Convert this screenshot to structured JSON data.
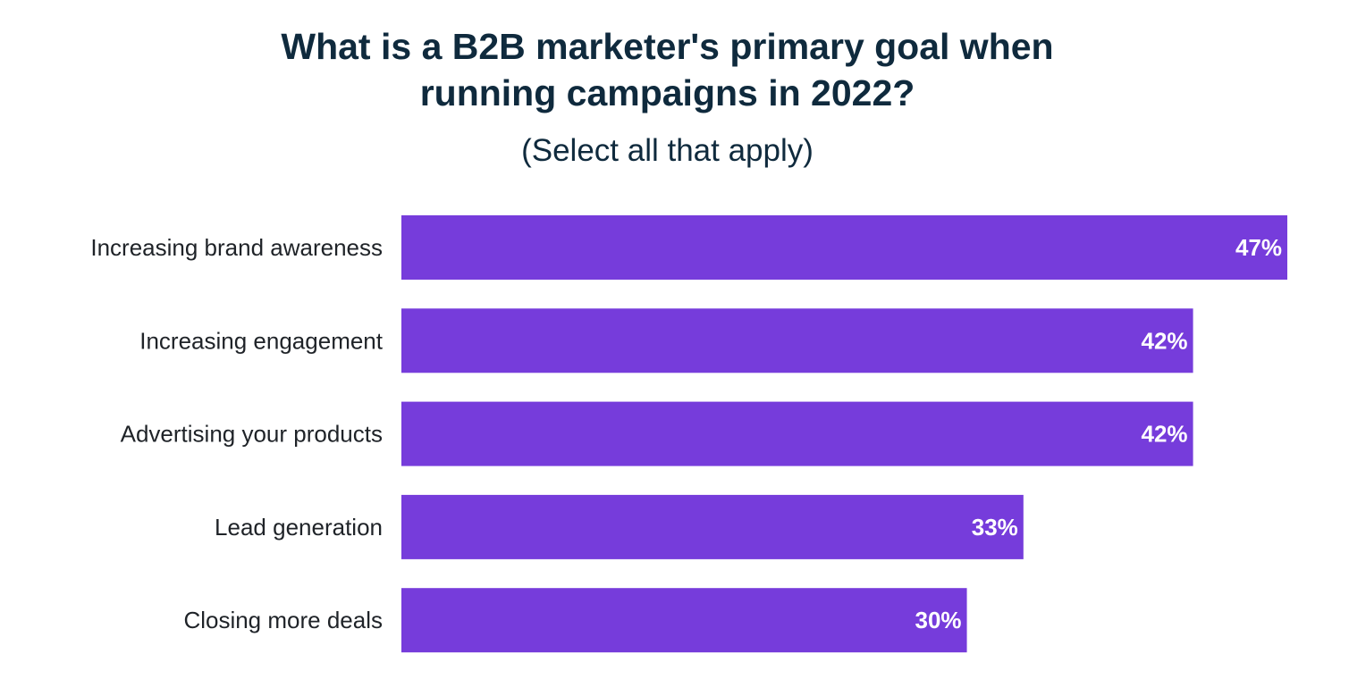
{
  "chart_data": {
    "type": "bar",
    "orientation": "horizontal",
    "title_lines": [
      "What is a B2B marketer's primary goal when",
      "running campaigns in 2022?"
    ],
    "subtitle": "(Select all that apply)",
    "categories": [
      "Increasing brand awareness",
      "Increasing engagement",
      "Advertising your products",
      "Lead generation",
      "Closing more deals"
    ],
    "values": [
      47,
      42,
      42,
      33,
      30
    ],
    "value_labels": [
      "47%",
      "42%",
      "42%",
      "33%",
      "30%"
    ],
    "unit": "%",
    "xlim": [
      0,
      47
    ],
    "grid": false,
    "legend": "none",
    "colors": {
      "bar": "#763cdb",
      "title": "#0f2a3d",
      "label": "#1f2328",
      "value_label": "#ffffff"
    }
  }
}
